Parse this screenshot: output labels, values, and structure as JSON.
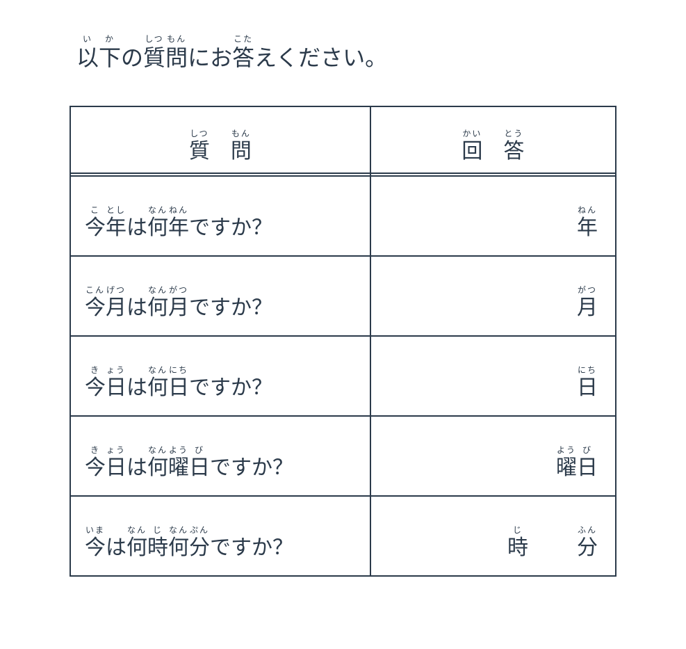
{
  "title": {
    "parts": [
      {
        "rb": "以",
        "rt": "い"
      },
      {
        "rb": "下",
        "rt": "か"
      },
      {
        "plain": "の"
      },
      {
        "rb": "質",
        "rt": "しつ"
      },
      {
        "rb": "問",
        "rt": "もん"
      },
      {
        "plain": "にお"
      },
      {
        "rb": "答",
        "rt": "こた"
      },
      {
        "plain": "えください。"
      }
    ]
  },
  "headers": {
    "question": [
      {
        "rb": "質",
        "rt": "しつ"
      },
      {
        "rb": "問",
        "rt": "もん"
      }
    ],
    "answer": [
      {
        "rb": "回",
        "rt": "かい"
      },
      {
        "rb": "答",
        "rt": "とう"
      }
    ]
  },
  "rows": [
    {
      "question": [
        {
          "rb": "今",
          "rt": "こ"
        },
        {
          "rb": "年",
          "rt": "とし"
        },
        {
          "plain": "は"
        },
        {
          "rb": "何",
          "rt": "なん"
        },
        {
          "rb": "年",
          "rt": "ねん"
        },
        {
          "plain": "ですか？"
        }
      ],
      "answer": [
        {
          "rb": "年",
          "rt": "ねん"
        }
      ],
      "answer_layout": "single"
    },
    {
      "question": [
        {
          "rb": "今",
          "rt": "こん"
        },
        {
          "rb": "月",
          "rt": "げつ"
        },
        {
          "plain": "は"
        },
        {
          "rb": "何",
          "rt": "なん"
        },
        {
          "rb": "月",
          "rt": "がつ"
        },
        {
          "plain": "ですか？"
        }
      ],
      "answer": [
        {
          "rb": "月",
          "rt": "がつ"
        }
      ],
      "answer_layout": "single"
    },
    {
      "question": [
        {
          "rb": "今",
          "rt": "き"
        },
        {
          "rb": "日",
          "rt": "ょう"
        },
        {
          "plain": "は"
        },
        {
          "rb": "何",
          "rt": "なん"
        },
        {
          "rb": "日",
          "rt": "にち"
        },
        {
          "plain": "ですか？"
        }
      ],
      "answer": [
        {
          "rb": "日",
          "rt": "にち"
        }
      ],
      "answer_layout": "single"
    },
    {
      "question": [
        {
          "rb": "今",
          "rt": "き"
        },
        {
          "rb": "日",
          "rt": "ょう"
        },
        {
          "plain": "は"
        },
        {
          "rb": "何",
          "rt": "なん"
        },
        {
          "rb": "曜",
          "rt": "よう"
        },
        {
          "rb": "日",
          "rt": "び"
        },
        {
          "plain": "ですか？"
        }
      ],
      "answer": [
        {
          "rb": "曜",
          "rt": "よう"
        },
        {
          "rb": "日",
          "rt": "び"
        }
      ],
      "answer_layout": "single"
    },
    {
      "question": [
        {
          "rb": "今",
          "rt": "いま"
        },
        {
          "plain": "は"
        },
        {
          "rb": "何",
          "rt": "なん"
        },
        {
          "rb": "時",
          "rt": "じ"
        },
        {
          "rb": "何",
          "rt": "なん"
        },
        {
          "rb": "分",
          "rt": "ぷん"
        },
        {
          "plain": "ですか？"
        }
      ],
      "answer": [
        {
          "rb": "時",
          "rt": "じ"
        },
        {
          "rb": "分",
          "rt": "ふん"
        }
      ],
      "answer_layout": "two-part"
    }
  ],
  "style": {
    "text_color": "#2b3a4a",
    "border_color": "#2b3a4a",
    "background": "#ffffff",
    "title_fontsize": 32,
    "cell_fontsize": 30,
    "ruby_fontsize": 12
  }
}
